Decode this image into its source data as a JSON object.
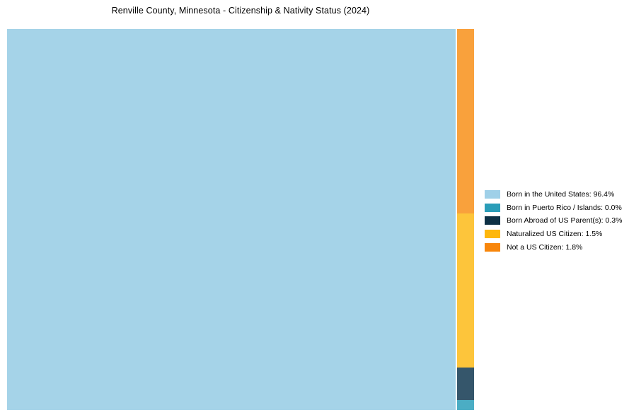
{
  "title": "Renville County, Minnesota - Citizenship & Nativity Status (2024)",
  "chart_data": {
    "type": "treemap",
    "title": "Renville County, Minnesota - Citizenship & Nativity Status (2024)",
    "categories": [
      "Born in the United States",
      "Born in Puerto Rico / Islands",
      "Born Abroad of US Parent(s)",
      "Naturalized US Citizen",
      "Not a US Citizen"
    ],
    "values": [
      96.4,
      0.0,
      0.3,
      1.5,
      1.8
    ],
    "unit": "%",
    "legend_position": "right",
    "layout_hint": "single large cell at left for majority category; remaining categories stacked top-to-bottom in a narrow right column ordered: Not a US Citizen, Naturalized US Citizen, Born Abroad of US Parent(s), Born in Puerto Rico / Islands"
  },
  "treemap": {
    "blocks": [
      {
        "name": "born-in-us",
        "label": "Born in the United States",
        "value": "96.4%",
        "color": "#a5d3e8"
      },
      {
        "name": "not-a-us-citizen",
        "label": "Not a US Citizen",
        "value": "1.8%",
        "color": "#f9a13c"
      },
      {
        "name": "naturalized",
        "label": "Naturalized US Citizen",
        "value": "1.5%",
        "color": "#fdc53b"
      },
      {
        "name": "born-abroad",
        "label": "Born Abroad of US Parent(s)",
        "value": "0.3%",
        "color": "#35566b"
      },
      {
        "name": "puerto-rico",
        "label": "Born in Puerto Rico / Islands",
        "value": "0.0%",
        "color": "#4badc4"
      }
    ]
  },
  "legend": {
    "items": [
      {
        "label": "Born in the United States: 96.4%",
        "color": "#9fd0e8"
      },
      {
        "label": "Born in Puerto Rico / Islands: 0.0%",
        "color": "#2a9db8"
      },
      {
        "label": "Born Abroad of US Parent(s): 0.3%",
        "color": "#0e3145"
      },
      {
        "label": "Naturalized US Citizen: 1.5%",
        "color": "#feb70c"
      },
      {
        "label": "Not a US Citizen: 1.8%",
        "color": "#f8860b"
      }
    ]
  }
}
